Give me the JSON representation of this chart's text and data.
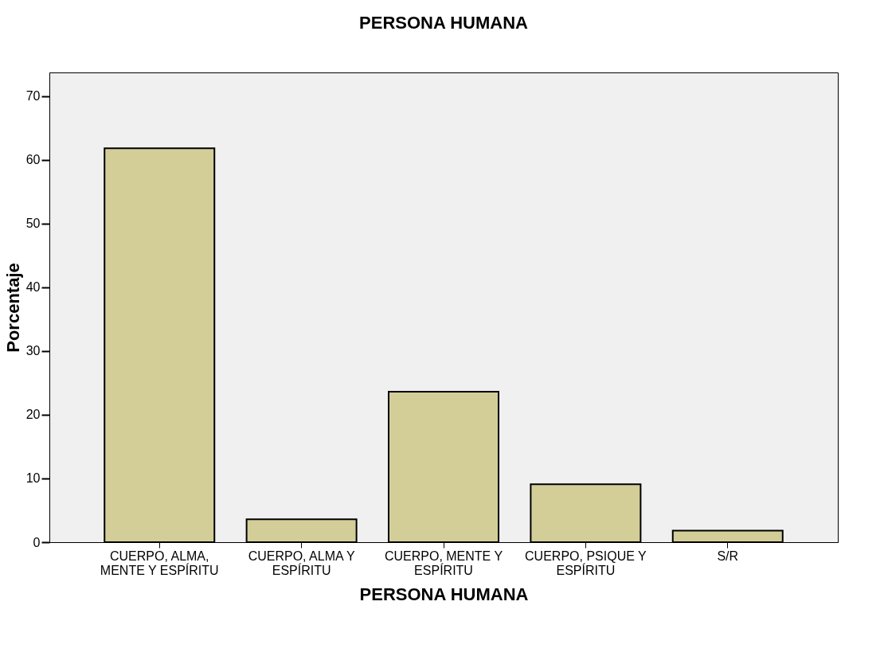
{
  "chart_data": {
    "type": "bar",
    "title": "PERSONA HUMANA",
    "xlabel": "PERSONA HUMANA",
    "ylabel": "Porcentaje",
    "categories": [
      "CUERPO, ALMA, MENTE Y ESPÍRITU",
      "CUERPO, ALMA Y ESPÍRITU",
      "CUERPO, MENTE Y ESPÍRITU",
      "CUERPO, PSIQUE Y ESPÍRITU",
      "S/R"
    ],
    "values": [
      61.8,
      3.6,
      23.6,
      9.1,
      1.8
    ],
    "color": "#d3ce98",
    "ylim": [
      0,
      73.7
    ],
    "yticks": [
      0,
      10,
      20,
      30,
      40,
      50,
      60,
      70
    ],
    "grid": false
  }
}
